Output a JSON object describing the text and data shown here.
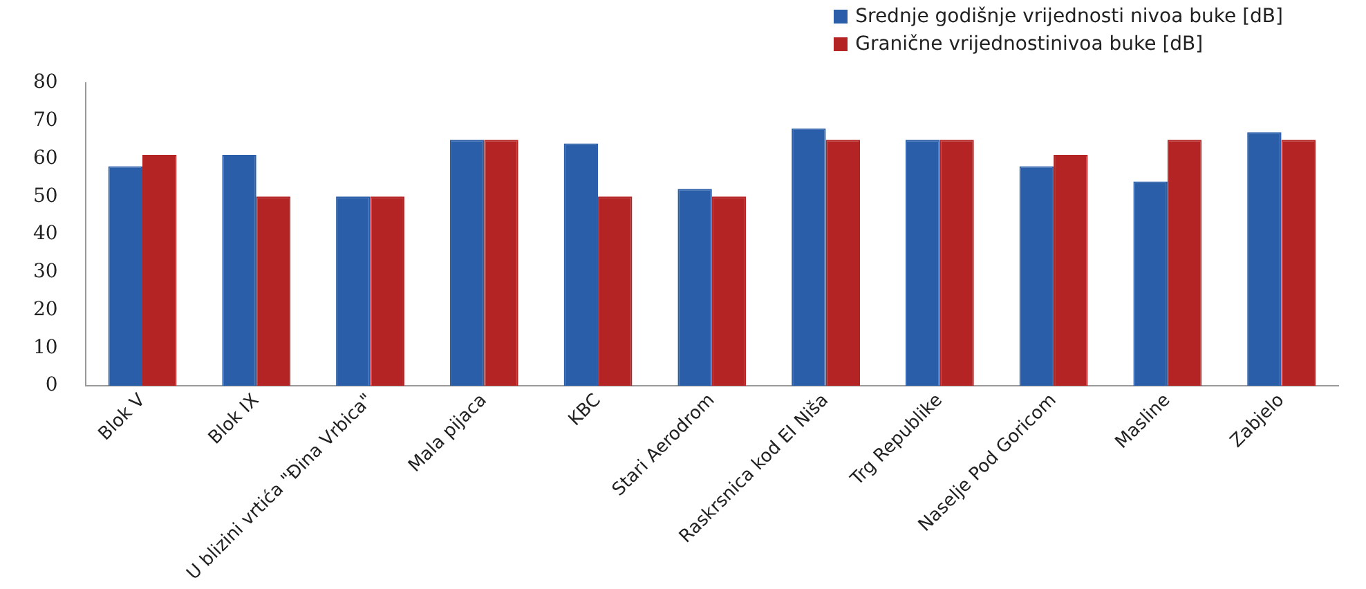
{
  "chart_data": {
    "type": "bar",
    "categories": [
      "Blok V",
      "Blok IX",
      "U blizini vrtića \"Đina Vrbica\"",
      "Mala pijaca",
      "KBC",
      "Stari Aerodrom",
      "Raskrsnica kod EI Niša",
      "Trg Republike",
      "Naselje Pod Goricom",
      "Masline",
      "Zabjelo"
    ],
    "series": [
      {
        "name": "Srednje godišnje vrijednosti nivoa buke [dB]",
        "color": "#2a5ea8",
        "values": [
          58,
          61,
          50,
          65,
          64,
          52,
          68,
          65,
          58,
          54,
          67
        ]
      },
      {
        "name": "Granične vrijednostinivoa buke [dB]",
        "color": "#b52424",
        "values": [
          61,
          50,
          50,
          65,
          50,
          50,
          65,
          65,
          61,
          65,
          65
        ]
      }
    ],
    "ylim": [
      0,
      80
    ],
    "yticks": [
      0,
      10,
      20,
      30,
      40,
      50,
      60,
      70,
      80
    ],
    "grid": false,
    "legend": "top right"
  }
}
